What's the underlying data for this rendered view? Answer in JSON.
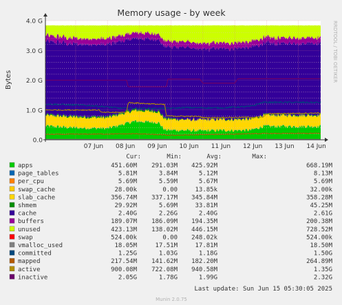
{
  "chart_data": {
    "type": "area",
    "title": "Memory usage - by week",
    "ylabel": "Bytes",
    "watermark": "RRDTOOL / TOBI OETIKER",
    "footer_update": "Last update:  Sun Jun 15 05:30:05 2025",
    "footer_version": "Munin 2.0.75",
    "y_ticks": [
      "0.0",
      "1.0 G",
      "2.0 G",
      "3.0 G",
      "4.0 G"
    ],
    "ylim": [
      0,
      4000000000
    ],
    "x_ticks": [
      "07 Jun",
      "08 Jun",
      "09 Jun",
      "10 Jun",
      "11 Jun",
      "12 Jun",
      "13 Jun",
      "14 Jun"
    ],
    "x_range_days": [
      6.05,
      14.7
    ],
    "x_tick_positions_days": [
      7,
      8,
      9,
      10,
      11,
      12,
      13,
      14
    ],
    "grid": true,
    "legend_columns": [
      "Cur:",
      "Min:",
      "Avg:",
      "Max:"
    ],
    "stacked_order": [
      "apps",
      "page_tables",
      "per_cpu",
      "swap_cache",
      "slab_cache",
      "shmem",
      "cache",
      "buffers",
      "unused"
    ],
    "line_series": [
      "swap",
      "vmalloc_used",
      "committed",
      "mapped",
      "active",
      "inactive"
    ],
    "series": [
      {
        "name": "apps",
        "color": "#00cc00",
        "cur": "451.60M",
        "min": "291.03M",
        "avg": "425.92M",
        "max": "668.19M"
      },
      {
        "name": "page_tables",
        "color": "#0066b3",
        "cur": "5.81M",
        "min": "3.84M",
        "avg": "5.12M",
        "max": "8.13M"
      },
      {
        "name": "per_cpu",
        "color": "#ff8000",
        "cur": "5.69M",
        "min": "5.59M",
        "avg": "5.67M",
        "max": "5.69M"
      },
      {
        "name": "swap_cache",
        "color": "#ffcc00",
        "cur": "28.00k",
        "min": "0.00",
        "avg": "13.85k",
        "max": "32.00k"
      },
      {
        "name": "slab_cache",
        "color": "#ffd700",
        "cur": "356.74M",
        "min": "337.17M",
        "avg": "345.84M",
        "max": "358.28M"
      },
      {
        "name": "shmem",
        "color": "#008f00",
        "cur": "29.92M",
        "min": "5.69M",
        "avg": "33.81M",
        "max": "45.25M"
      },
      {
        "name": "cache",
        "color": "#330099",
        "cur": "2.40G",
        "min": "2.26G",
        "avg": "2.40G",
        "max": "2.61G"
      },
      {
        "name": "buffers",
        "color": "#990099",
        "cur": "189.07M",
        "min": "186.09M",
        "avg": "194.35M",
        "max": "200.38M"
      },
      {
        "name": "unused",
        "color": "#ccff00",
        "cur": "423.13M",
        "min": "138.02M",
        "avg": "446.15M",
        "max": "728.52M"
      },
      {
        "name": "swap",
        "color": "#ff0000",
        "cur": "524.00k",
        "min": "0.00",
        "avg": "248.02k",
        "max": "524.00k"
      },
      {
        "name": "vmalloc_used",
        "color": "#808080",
        "cur": "18.05M",
        "min": "17.51M",
        "avg": "17.81M",
        "max": "18.50M"
      },
      {
        "name": "committed",
        "color": "#00487d",
        "cur": "1.25G",
        "min": "1.03G",
        "avg": "1.18G",
        "max": "1.50G"
      },
      {
        "name": "mapped",
        "color": "#b35a00",
        "cur": "217.54M",
        "min": "141.62M",
        "avg": "182.20M",
        "max": "264.89M"
      },
      {
        "name": "active",
        "color": "#b38f00",
        "cur": "900.08M",
        "min": "722.08M",
        "avg": "940.58M",
        "max": "1.35G"
      },
      {
        "name": "inactive",
        "color": "#6b006b",
        "cur": "2.05G",
        "min": "1.78G",
        "avg": "1.99G",
        "max": "2.32G"
      }
    ],
    "profiles": {
      "apps": [
        [
          6.05,
          460
        ],
        [
          7.0,
          400
        ],
        [
          8.0,
          380
        ],
        [
          8.85,
          620
        ],
        [
          9.6,
          580
        ],
        [
          9.8,
          330
        ],
        [
          10.9,
          300
        ],
        [
          11.5,
          310
        ],
        [
          12.5,
          320
        ],
        [
          12.9,
          450
        ],
        [
          14.7,
          450
        ]
      ],
      "slab_cache": [
        [
          6.05,
          345
        ],
        [
          14.7,
          357
        ]
      ],
      "shmem": [
        [
          6.05,
          34
        ],
        [
          9.8,
          45
        ],
        [
          10.5,
          6
        ],
        [
          12.9,
          30
        ],
        [
          14.7,
          30
        ]
      ],
      "cache": [
        [
          6.05,
          2450
        ],
        [
          7.8,
          2420
        ],
        [
          8.5,
          2400
        ],
        [
          9.8,
          2380
        ],
        [
          10.5,
          2420
        ],
        [
          11.0,
          2360
        ],
        [
          12.0,
          2380
        ],
        [
          12.9,
          2400
        ],
        [
          14.7,
          2400
        ]
      ],
      "buffers": [
        [
          6.05,
          195
        ],
        [
          14.7,
          189
        ]
      ],
      "swap": [
        [
          6.05,
          0
        ],
        [
          12.0,
          0
        ],
        [
          12.1,
          0.524
        ],
        [
          14.7,
          0.524
        ]
      ],
      "vmalloc_used": [
        [
          6.05,
          17.8
        ],
        [
          14.7,
          18.05
        ]
      ],
      "committed": [
        [
          6.05,
          1200
        ],
        [
          7.5,
          1150
        ],
        [
          8.4,
          1060
        ],
        [
          9.8,
          1050
        ],
        [
          10.5,
          1080
        ],
        [
          11.5,
          1070
        ],
        [
          12.5,
          1120
        ],
        [
          12.9,
          1260
        ],
        [
          14.7,
          1250
        ]
      ],
      "mapped": [
        [
          6.05,
          180
        ],
        [
          9.0,
          200
        ],
        [
          10.0,
          150
        ],
        [
          12.9,
          210
        ],
        [
          14.7,
          217
        ]
      ],
      "active": [
        [
          6.05,
          1000
        ],
        [
          7.0,
          1000
        ],
        [
          7.75,
          1000
        ],
        [
          7.8,
          920
        ],
        [
          8.6,
          920
        ],
        [
          8.65,
          1250
        ],
        [
          9.8,
          1180
        ],
        [
          9.85,
          800
        ],
        [
          10.9,
          780
        ],
        [
          11.0,
          740
        ],
        [
          12.9,
          760
        ],
        [
          13.0,
          870
        ],
        [
          14.7,
          900
        ]
      ],
      "inactive": [
        [
          6.05,
          2000
        ],
        [
          8.6,
          2000
        ],
        [
          8.65,
          1780
        ],
        [
          9.85,
          1780
        ],
        [
          9.9,
          2040
        ],
        [
          10.9,
          2040
        ],
        [
          11.0,
          1900
        ],
        [
          12.0,
          1900
        ],
        [
          12.1,
          2050
        ],
        [
          14.7,
          2050
        ]
      ]
    }
  }
}
